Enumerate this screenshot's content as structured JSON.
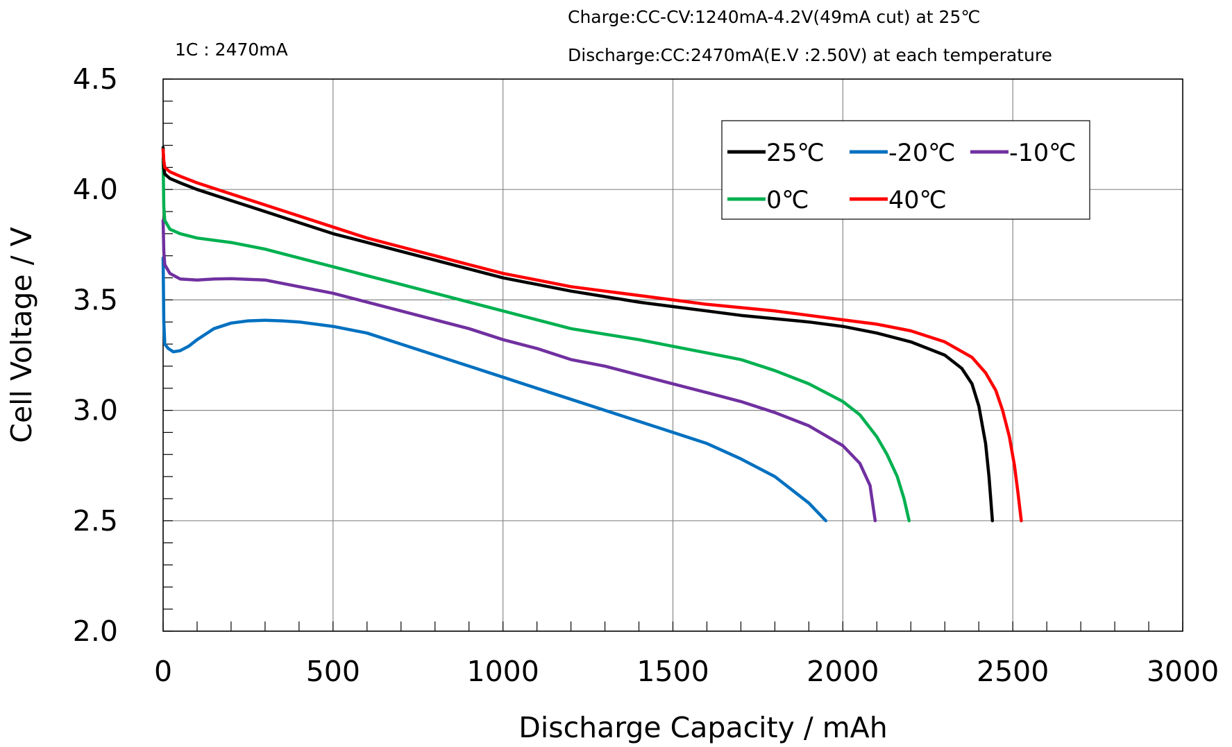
{
  "chart_data": {
    "type": "line",
    "xlabel": "Discharge  Capacity / mAh",
    "ylabel": "Cell  Voltage  /  V",
    "xlim": [
      0,
      3000
    ],
    "ylim": [
      2.0,
      4.5
    ],
    "xticks": [
      "0",
      "500",
      "1000",
      "1500",
      "2000",
      "2500",
      "3000"
    ],
    "yticks": [
      "2.0",
      "2.5",
      "3.0",
      "3.5",
      "4.0",
      "4.5"
    ],
    "grid": true,
    "legend_position": "top-right",
    "annotations": {
      "rate": "1C : 2470mA",
      "charge": "Charge:CC-CV:1240mA-4.2V(49mA  cut) at  25℃",
      "discharge": "Discharge:CC:2470mA(E.V :2.50V)  at each temperature"
    },
    "series": [
      {
        "name": "25℃",
        "color": "#000000",
        "x": [
          0,
          2,
          5,
          20,
          50,
          100,
          200,
          300,
          400,
          500,
          600,
          700,
          800,
          900,
          1000,
          1100,
          1200,
          1300,
          1400,
          1500,
          1600,
          1700,
          1800,
          1900,
          2000,
          2100,
          2200,
          2300,
          2350,
          2380,
          2400,
          2420,
          2430,
          2440
        ],
        "y": [
          4.19,
          4.1,
          4.07,
          4.05,
          4.03,
          4.0,
          3.95,
          3.9,
          3.85,
          3.8,
          3.76,
          3.72,
          3.68,
          3.64,
          3.6,
          3.57,
          3.54,
          3.515,
          3.49,
          3.47,
          3.45,
          3.43,
          3.415,
          3.4,
          3.38,
          3.35,
          3.31,
          3.25,
          3.19,
          3.12,
          3.02,
          2.85,
          2.7,
          2.5
        ]
      },
      {
        "name": "-20℃",
        "color": "#0070c0",
        "x": [
          0,
          2,
          5,
          15,
          30,
          50,
          75,
          100,
          150,
          200,
          250,
          300,
          350,
          400,
          500,
          600,
          700,
          800,
          900,
          1000,
          1100,
          1200,
          1300,
          1400,
          1500,
          1600,
          1700,
          1800,
          1900,
          1950
        ],
        "y": [
          3.69,
          3.4,
          3.3,
          3.28,
          3.265,
          3.27,
          3.29,
          3.32,
          3.37,
          3.395,
          3.405,
          3.408,
          3.405,
          3.4,
          3.38,
          3.35,
          3.3,
          3.25,
          3.2,
          3.15,
          3.1,
          3.05,
          3.0,
          2.95,
          2.9,
          2.85,
          2.78,
          2.7,
          2.58,
          2.5
        ]
      },
      {
        "name": "-10℃",
        "color": "#7030a0",
        "x": [
          0,
          2,
          5,
          20,
          50,
          100,
          150,
          200,
          300,
          400,
          500,
          600,
          700,
          800,
          900,
          1000,
          1100,
          1200,
          1300,
          1400,
          1500,
          1600,
          1700,
          1800,
          1900,
          2000,
          2050,
          2080,
          2095
        ],
        "y": [
          3.86,
          3.72,
          3.66,
          3.62,
          3.595,
          3.59,
          3.595,
          3.596,
          3.59,
          3.56,
          3.53,
          3.49,
          3.45,
          3.41,
          3.37,
          3.32,
          3.28,
          3.23,
          3.2,
          3.16,
          3.12,
          3.08,
          3.04,
          2.99,
          2.93,
          2.84,
          2.76,
          2.66,
          2.5
        ]
      },
      {
        "name": "0℃",
        "color": "#00b050",
        "x": [
          0,
          2,
          5,
          20,
          50,
          100,
          200,
          300,
          400,
          500,
          600,
          700,
          800,
          900,
          1000,
          1100,
          1200,
          1300,
          1400,
          1500,
          1600,
          1700,
          1800,
          1900,
          2000,
          2050,
          2100,
          2130,
          2160,
          2180,
          2195
        ],
        "y": [
          4.14,
          3.92,
          3.86,
          3.82,
          3.8,
          3.78,
          3.76,
          3.73,
          3.69,
          3.65,
          3.61,
          3.57,
          3.53,
          3.49,
          3.45,
          3.41,
          3.37,
          3.345,
          3.32,
          3.29,
          3.26,
          3.23,
          3.18,
          3.12,
          3.04,
          2.98,
          2.88,
          2.8,
          2.7,
          2.6,
          2.5
        ]
      },
      {
        "name": "40℃",
        "color": "#ff0000",
        "x": [
          0,
          2,
          5,
          20,
          50,
          100,
          200,
          300,
          400,
          500,
          600,
          700,
          800,
          900,
          1000,
          1100,
          1200,
          1300,
          1400,
          1500,
          1600,
          1700,
          1800,
          1900,
          2000,
          2100,
          2200,
          2300,
          2380,
          2420,
          2450,
          2470,
          2490,
          2505,
          2515,
          2525
        ],
        "y": [
          4.18,
          4.13,
          4.1,
          4.08,
          4.06,
          4.03,
          3.98,
          3.93,
          3.88,
          3.83,
          3.78,
          3.74,
          3.7,
          3.66,
          3.62,
          3.59,
          3.56,
          3.54,
          3.52,
          3.5,
          3.48,
          3.465,
          3.45,
          3.43,
          3.41,
          3.39,
          3.36,
          3.31,
          3.24,
          3.17,
          3.09,
          3.0,
          2.88,
          2.75,
          2.63,
          2.5
        ]
      }
    ]
  }
}
